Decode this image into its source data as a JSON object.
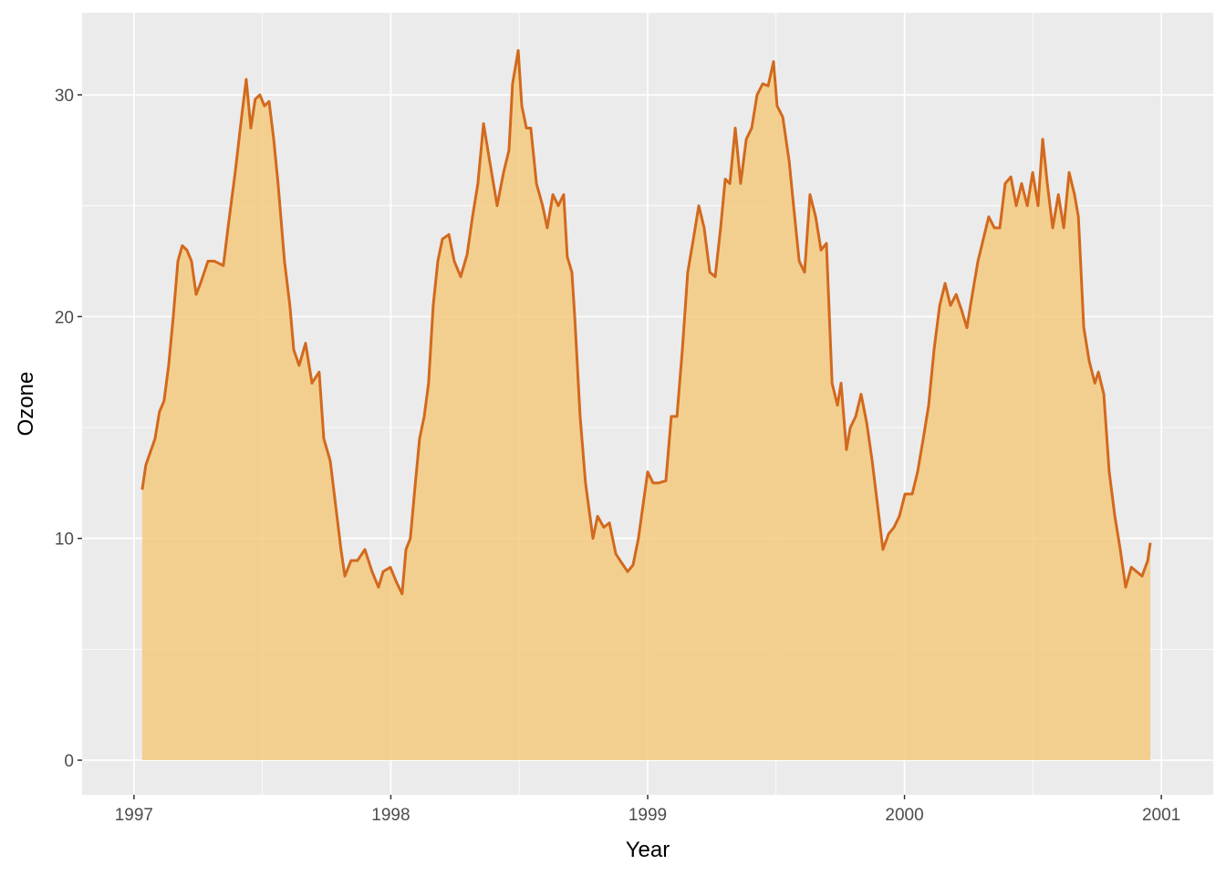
{
  "chart_data": {
    "type": "area",
    "x_label": "Year",
    "y_label": "Ozone",
    "x": [
      1997.032,
      1997.046,
      1997.082,
      1997.099,
      1997.117,
      1997.135,
      1997.153,
      1997.171,
      1997.188,
      1997.206,
      1997.224,
      1997.242,
      1997.259,
      1997.288,
      1997.313,
      1997.348,
      1997.366,
      1997.394,
      1997.419,
      1997.437,
      1997.455,
      1997.472,
      1997.49,
      1997.508,
      1997.526,
      1997.544,
      1997.561,
      1997.586,
      1997.607,
      1997.622,
      1997.643,
      1997.668,
      1997.693,
      1997.721,
      1997.739,
      1997.764,
      1997.785,
      1997.806,
      1997.821,
      1997.845,
      1997.87,
      1997.899,
      1997.927,
      1997.952,
      1997.97,
      1997.998,
      1998.023,
      1998.044,
      1998.059,
      1998.076,
      1998.094,
      1998.112,
      1998.13,
      1998.147,
      1998.165,
      1998.183,
      1998.201,
      1998.226,
      1998.247,
      1998.272,
      1998.297,
      1998.318,
      1998.339,
      1998.361,
      1998.385,
      1998.414,
      1998.439,
      1998.46,
      1998.474,
      1998.496,
      1998.51,
      1998.528,
      1998.545,
      1998.567,
      1998.591,
      1998.609,
      1998.631,
      1998.652,
      1998.673,
      1998.687,
      1998.705,
      1998.716,
      1998.737,
      1998.758,
      1998.787,
      1998.805,
      1998.829,
      1998.851,
      1998.876,
      1998.893,
      1998.922,
      1998.943,
      1998.964,
      1998.982,
      1999.0,
      1999.021,
      1999.043,
      1999.071,
      1999.092,
      1999.114,
      1999.135,
      1999.156,
      1999.178,
      1999.199,
      1999.22,
      1999.242,
      1999.263,
      1999.284,
      1999.302,
      1999.32,
      1999.341,
      1999.362,
      1999.384,
      1999.405,
      1999.426,
      1999.448,
      1999.469,
      1999.49,
      1999.504,
      1999.526,
      1999.551,
      1999.568,
      1999.59,
      1999.611,
      1999.632,
      1999.654,
      1999.675,
      1999.696,
      1999.718,
      1999.739,
      1999.753,
      1999.774,
      1999.789,
      1999.81,
      1999.831,
      1999.853,
      1999.874,
      1999.895,
      1999.916,
      1999.938,
      1999.959,
      1999.98,
      2000.002,
      2000.03,
      2000.051,
      2000.073,
      2000.094,
      2000.115,
      2000.137,
      2000.158,
      2000.179,
      2000.201,
      2000.222,
      2000.243,
      2000.264,
      2000.286,
      2000.307,
      2000.328,
      2000.35,
      2000.371,
      2000.392,
      2000.414,
      2000.435,
      2000.456,
      2000.478,
      2000.499,
      2000.52,
      2000.538,
      2000.556,
      2000.577,
      2000.599,
      2000.62,
      2000.641,
      2000.662,
      2000.677,
      2000.698,
      2000.719,
      2000.741,
      2000.755,
      2000.776,
      2000.797,
      2000.819,
      2000.84,
      2000.861,
      2000.883,
      2000.904,
      2000.925,
      2000.947,
      2000.957
    ],
    "values": [
      12.2,
      13.3,
      14.5,
      15.7,
      16.2,
      17.8,
      20,
      22.5,
      23.2,
      23,
      22.5,
      21,
      21.5,
      22.5,
      22.5,
      22.3,
      24,
      26.5,
      29,
      30.7,
      28.5,
      29.8,
      30,
      29.5,
      29.7,
      28,
      26,
      22.5,
      20.5,
      18.5,
      17.8,
      18.8,
      17,
      17.5,
      14.5,
      13.5,
      11.5,
      9.5,
      8.3,
      9,
      9,
      9.5,
      8.5,
      7.8,
      8.5,
      8.7,
      8,
      7.5,
      9.5,
      10,
      12.3,
      14.5,
      15.5,
      17,
      20.5,
      22.5,
      23.5,
      23.7,
      22.5,
      21.8,
      22.8,
      24.5,
      26,
      28.7,
      27,
      25,
      26.5,
      27.5,
      30.5,
      32,
      29.5,
      28.5,
      28.5,
      26,
      25,
      24,
      25.5,
      25,
      25.5,
      22.7,
      22,
      20,
      15.5,
      12.5,
      10,
      11,
      10.5,
      10.7,
      9.3,
      9,
      8.5,
      8.8,
      10,
      11.5,
      13,
      12.5,
      12.5,
      12.6,
      15.5,
      15.5,
      18.5,
      22,
      23.5,
      25,
      24,
      22,
      21.8,
      24,
      26.2,
      26,
      28.5,
      26,
      28,
      28.5,
      30,
      30.5,
      30.4,
      31.5,
      29.5,
      29,
      27,
      25,
      22.5,
      22,
      25.5,
      24.5,
      23,
      23.3,
      17,
      16,
      17,
      14,
      15,
      15.5,
      16.5,
      15.2,
      13.5,
      11.5,
      9.5,
      10.2,
      10.5,
      11,
      12,
      12,
      13,
      14.5,
      16,
      18.5,
      20.5,
      21.5,
      20.5,
      21,
      20.3,
      19.5,
      21,
      22.5,
      23.5,
      24.5,
      24,
      24,
      26,
      26.3,
      25,
      26,
      25,
      26.5,
      25,
      28,
      26,
      24,
      25.5,
      24,
      26.5,
      25.5,
      24.5,
      19.5,
      18,
      17,
      17.5,
      16.5,
      13,
      11,
      9.5,
      7.8,
      8.7,
      8.5,
      8.3,
      9,
      9.8
    ],
    "color": "#d2691e",
    "fill": "#f5c878",
    "xlim": [
      1996.798,
      2001.202
    ],
    "xticks": [
      1997,
      1998,
      1999,
      2000,
      2001
    ],
    "xminor": [
      1997.5,
      1998.5,
      1999.5,
      2000.5
    ],
    "ylim": [
      -1.56,
      33.7
    ],
    "yticks": [
      0,
      10,
      20,
      30
    ],
    "yminor": [
      5,
      15,
      25
    ],
    "grid": true
  }
}
